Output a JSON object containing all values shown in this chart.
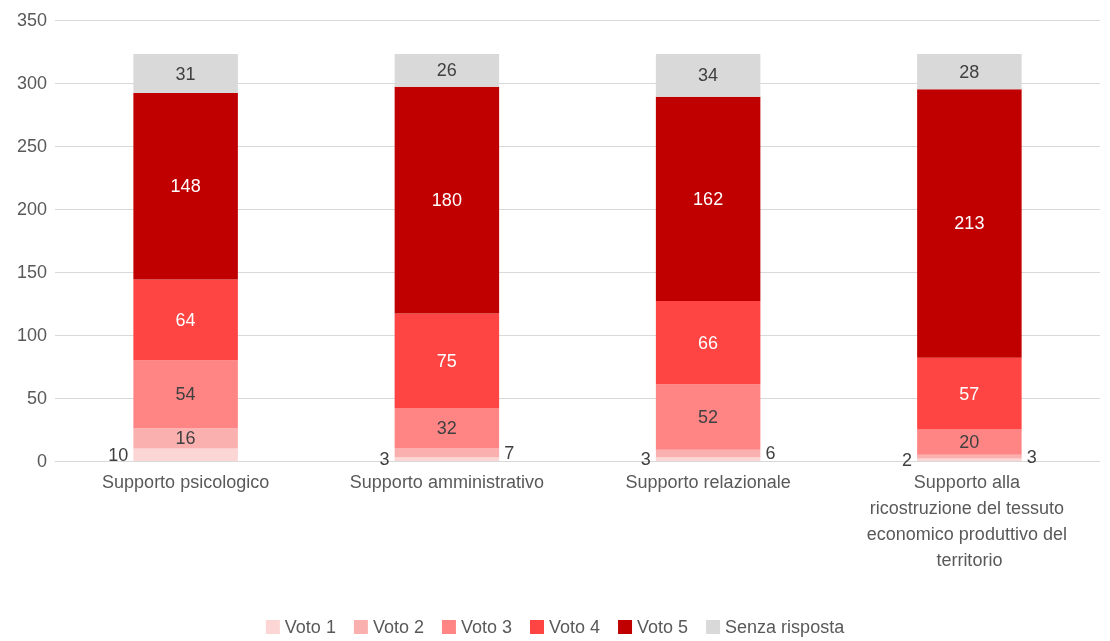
{
  "chart_data": {
    "type": "bar",
    "stacked": true,
    "data_labels": true,
    "grid": "y",
    "legend": "bottom",
    "categories": [
      "Supporto psicologico",
      "Supporto amministrativo",
      "Supporto relazionale",
      "Supporto alla ricostruzione del tessuto economico produttivo del territorio"
    ],
    "series": [
      {
        "name": "Voto 1",
        "color": "#fcd5d5",
        "values": [
          10,
          3,
          3,
          2
        ]
      },
      {
        "name": "Voto 2",
        "color": "#fbb0b0",
        "values": [
          16,
          7,
          6,
          3
        ]
      },
      {
        "name": "Voto 3",
        "color": "#ff8585",
        "values": [
          54,
          32,
          52,
          20
        ]
      },
      {
        "name": "Voto 4",
        "color": "#ff4444",
        "values": [
          64,
          75,
          66,
          57
        ]
      },
      {
        "name": "Voto 5",
        "color": "#c00000",
        "values": [
          148,
          180,
          162,
          213
        ]
      },
      {
        "name": "Senza risposta",
        "color": "#d9d9d9",
        "values": [
          31,
          26,
          34,
          28
        ]
      }
    ],
    "ylim": [
      0,
      350
    ],
    "yticks": [
      0,
      50,
      100,
      150,
      200,
      250,
      300,
      350
    ]
  }
}
